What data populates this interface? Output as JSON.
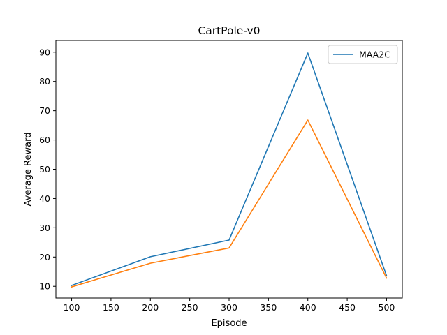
{
  "chart_data": {
    "type": "line",
    "title": "CartPole-v0",
    "xlabel": "Episode",
    "ylabel": "Average Reward",
    "x": [
      100,
      200,
      300,
      400,
      500
    ],
    "xlim": [
      80,
      520
    ],
    "ylim": [
      6,
      94
    ],
    "xticks": [
      100,
      150,
      200,
      250,
      300,
      350,
      400,
      450,
      500
    ],
    "yticks": [
      10,
      20,
      30,
      40,
      50,
      60,
      70,
      80,
      90
    ],
    "grid": false,
    "legend_position": "top-right",
    "series": [
      {
        "name": "MAA2C",
        "color": "#1f77b4",
        "values": [
          10.3,
          20.1,
          25.8,
          89.7,
          13.6
        ],
        "in_legend": true
      },
      {
        "color": "#ff7f0e",
        "values": [
          9.8,
          17.9,
          23.1,
          66.8,
          12.8
        ],
        "in_legend": false
      }
    ]
  }
}
